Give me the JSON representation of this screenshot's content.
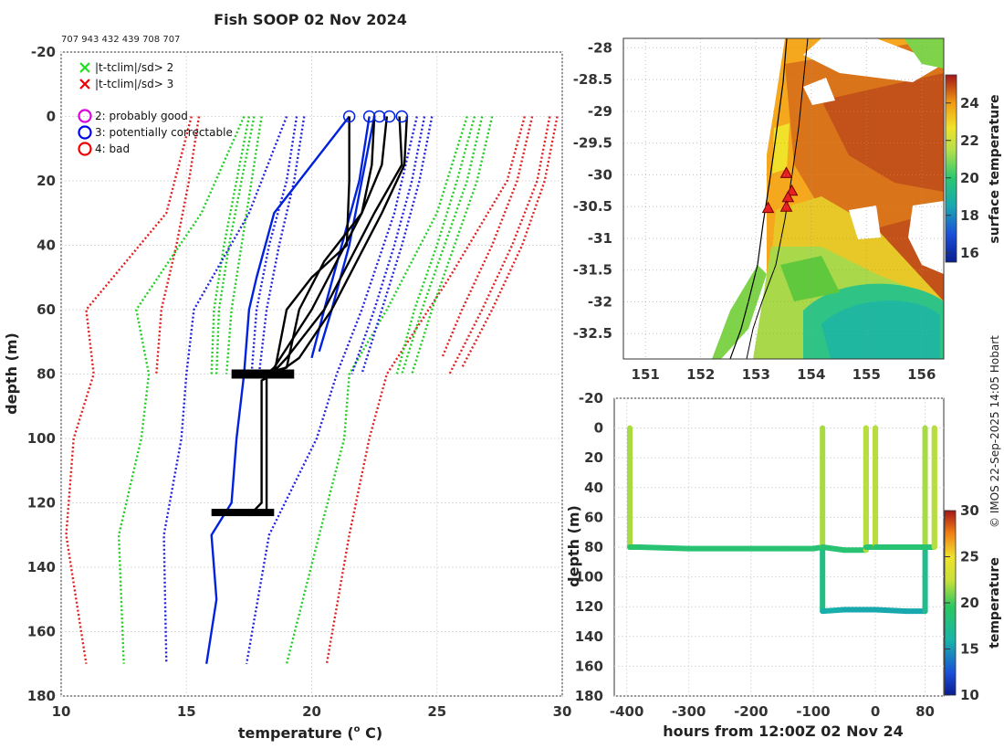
{
  "figure": {
    "title": "Fish SOOP 02 Nov 2024",
    "ids_line": "707 943 432 439 708 707",
    "credit": "© IMOS 22-Sep-2025 14:05 Hobart"
  },
  "chart_data": [
    {
      "id": "profiles",
      "type": "line",
      "title": "Fish SOOP 02 Nov 2024",
      "xlabel": "temperature (",
      "xlabel_sup": "o",
      "xlabel_tail": " C)",
      "ylabel": "depth (m)",
      "xlim": [
        10,
        30
      ],
      "ylim": [
        -20,
        180
      ],
      "y_inverted": true,
      "xticks": [
        "10",
        "15",
        "20",
        "25",
        "30"
      ],
      "yticks": [
        "-20",
        "0",
        "20",
        "40",
        "60",
        "80",
        "100",
        "120",
        "140",
        "160",
        "180"
      ],
      "xtick_values": [
        10,
        15,
        20,
        25,
        30
      ],
      "ytick_values": [
        -20,
        0,
        20,
        40,
        60,
        80,
        100,
        120,
        140,
        160,
        180
      ],
      "grid": true,
      "legend": {
        "position": "top-left",
        "entries": [
          {
            "marker": "x",
            "color": "#22dd22",
            "label": "|t-tclim|/sd> 2"
          },
          {
            "marker": "x",
            "color": "#ee0000",
            "label": "|t-tclim|/sd> 3"
          },
          {
            "marker": "o",
            "color": "#dd00dd",
            "label": "2: probably good"
          },
          {
            "marker": "o",
            "color": "#0000ee",
            "label": "3: potentially correctable"
          },
          {
            "marker": "o",
            "color": "#ee0000",
            "label": "4: bad"
          }
        ]
      },
      "climatology_lines": [
        {
          "color": "#e02020",
          "depth": [
            0,
            30,
            60,
            80,
            100,
            130,
            170
          ],
          "temp": [
            15.2,
            14.2,
            11.0,
            11.3,
            10.5,
            10.2,
            11.0
          ]
        },
        {
          "color": "#e02020",
          "depth": [
            0,
            20,
            40,
            60,
            80
          ],
          "temp": [
            15.5,
            15.1,
            14.6,
            14.0,
            13.8
          ]
        },
        {
          "color": "#e02020",
          "depth": [
            0,
            20,
            50,
            80,
            100,
            130,
            170
          ],
          "temp": [
            28.5,
            27.8,
            25.5,
            23.0,
            22.3,
            21.5,
            20.6
          ]
        },
        {
          "color": "#e02020",
          "depth": [
            0,
            20,
            40,
            60,
            80
          ],
          "temp": [
            29.5,
            29.0,
            28.0,
            26.8,
            25.5
          ]
        },
        {
          "color": "#e02020",
          "depth": [
            0,
            20,
            40,
            60,
            78
          ],
          "temp": [
            29.8,
            29.3,
            28.4,
            27.2,
            26.0
          ]
        },
        {
          "color": "#e02020",
          "depth": [
            0,
            20,
            40,
            60,
            75
          ],
          "temp": [
            28.8,
            28.2,
            27.2,
            26.0,
            25.2
          ]
        },
        {
          "color": "#22cc22",
          "depth": [
            0,
            30,
            60,
            80,
            100,
            130,
            170
          ],
          "temp": [
            17.3,
            15.6,
            13.0,
            13.5,
            13.2,
            12.3,
            12.5
          ]
        },
        {
          "color": "#22cc22",
          "depth": [
            0,
            20,
            40,
            60,
            80
          ],
          "temp": [
            17.7,
            17.2,
            16.7,
            16.3,
            16.2
          ]
        },
        {
          "color": "#22cc22",
          "depth": [
            0,
            20,
            40,
            60,
            80
          ],
          "temp": [
            18.0,
            17.6,
            17.2,
            16.8,
            16.6
          ]
        },
        {
          "color": "#22cc22",
          "depth": [
            0,
            20,
            40,
            60,
            80
          ],
          "temp": [
            17.5,
            17.0,
            16.5,
            16.1,
            16.0
          ]
        },
        {
          "color": "#22cc22",
          "depth": [
            0,
            30,
            60,
            80,
            100,
            130,
            170
          ],
          "temp": [
            26.2,
            25.0,
            23.0,
            21.5,
            21.3,
            20.3,
            19.0
          ]
        },
        {
          "color": "#22cc22",
          "depth": [
            0,
            20,
            40,
            60,
            80
          ],
          "temp": [
            26.8,
            26.2,
            25.3,
            24.4,
            23.6
          ]
        },
        {
          "color": "#22cc22",
          "depth": [
            0,
            20,
            40,
            60,
            80
          ],
          "temp": [
            27.2,
            26.6,
            25.7,
            24.8,
            24.0
          ]
        },
        {
          "color": "#22cc22",
          "depth": [
            0,
            20,
            40,
            60,
            80
          ],
          "temp": [
            26.5,
            25.8,
            25.0,
            24.1,
            23.4
          ]
        },
        {
          "color": "#2222dd",
          "depth": [
            0,
            30,
            60,
            80,
            100,
            130,
            170
          ],
          "temp": [
            19.0,
            17.5,
            15.3,
            15.0,
            14.8,
            14.1,
            14.2
          ]
        },
        {
          "color": "#2222dd",
          "depth": [
            0,
            20,
            40,
            60,
            80
          ],
          "temp": [
            19.4,
            19.0,
            18.3,
            17.8,
            17.6
          ]
        },
        {
          "color": "#2222dd",
          "depth": [
            0,
            20,
            40,
            60,
            80
          ],
          "temp": [
            19.7,
            19.3,
            18.7,
            18.2,
            17.9
          ]
        },
        {
          "color": "#2222dd",
          "depth": [
            0,
            30,
            60,
            80,
            100,
            130,
            170
          ],
          "temp": [
            24.2,
            23.3,
            22.0,
            21.0,
            20.2,
            18.3,
            17.4
          ]
        },
        {
          "color": "#2222dd",
          "depth": [
            0,
            20,
            40,
            60,
            80
          ],
          "temp": [
            24.5,
            24.0,
            23.3,
            22.5,
            21.6
          ]
        },
        {
          "color": "#2222dd",
          "depth": [
            0,
            20,
            40,
            60,
            80
          ],
          "temp": [
            24.8,
            24.3,
            23.6,
            22.8,
            22.0
          ]
        }
      ],
      "observed_lines": [
        {
          "color": "#0022dd",
          "depth": [
            0,
            10,
            30,
            50,
            60,
            80,
            100,
            120,
            130,
            150,
            170
          ],
          "temp": [
            21.5,
            20.5,
            18.5,
            17.8,
            17.5,
            17.3,
            17.0,
            16.8,
            16.0,
            16.2,
            15.8
          ]
        },
        {
          "color": "#0022dd",
          "depth": [
            0,
            20,
            40,
            60,
            75
          ],
          "temp": [
            22.3,
            21.9,
            21.2,
            20.5,
            20.0
          ]
        },
        {
          "color": "#0022dd",
          "depth": [
            0,
            20,
            40,
            60,
            73
          ],
          "temp": [
            22.5,
            22.0,
            21.5,
            20.8,
            20.3
          ]
        },
        {
          "color": "#000000",
          "depth": [
            0,
            20,
            40,
            50,
            60,
            80,
            82,
            100,
            120,
            124
          ],
          "temp": [
            21.5,
            21.5,
            21.4,
            20.0,
            19.0,
            18.5,
            18.0,
            18.0,
            18.0,
            17.5
          ]
        },
        {
          "color": "#000000",
          "depth": [
            0,
            15,
            30,
            45,
            60,
            78,
            80
          ],
          "temp": [
            22.5,
            22.4,
            22.0,
            20.5,
            19.5,
            19.0,
            18.0
          ]
        },
        {
          "color": "#000000",
          "depth": [
            0,
            15,
            30,
            45,
            60,
            78,
            80,
            100,
            123
          ],
          "temp": [
            23.0,
            22.8,
            22.0,
            21.0,
            20.0,
            18.5,
            18.2,
            18.2,
            18.2
          ]
        },
        {
          "color": "#000000",
          "depth": [
            0,
            15,
            30,
            45,
            60,
            75,
            80
          ],
          "temp": [
            23.5,
            23.6,
            22.5,
            21.5,
            20.5,
            19.0,
            18.4
          ]
        },
        {
          "color": "#000000",
          "depth": [
            0,
            15,
            30,
            45,
            60,
            75,
            80
          ],
          "temp": [
            23.8,
            23.7,
            22.8,
            21.8,
            20.8,
            19.5,
            18.6
          ]
        }
      ],
      "surface_circles": [
        {
          "temp": 21.5,
          "color": "#0022dd"
        },
        {
          "temp": 22.3,
          "color": "#0022dd"
        },
        {
          "temp": 22.7,
          "color": "#0022dd"
        },
        {
          "temp": 23.1,
          "color": "#0022dd"
        },
        {
          "temp": 23.6,
          "color": "#0022dd"
        }
      ]
    },
    {
      "id": "sst_map",
      "type": "heatmap",
      "xlabel": "",
      "ylabel": "",
      "xlim": [
        150.6,
        156.4
      ],
      "ylim": [
        -32.9,
        -27.85
      ],
      "xticks": [
        "151",
        "152",
        "153",
        "154",
        "155",
        "156"
      ],
      "xtick_values": [
        151,
        152,
        153,
        154,
        155,
        156
      ],
      "yticks": [
        "-28",
        "-28.5",
        "-29",
        "-29.5",
        "-30",
        "-30.5",
        "-31",
        "-31.5",
        "-32",
        "-32.5"
      ],
      "ytick_values": [
        -28,
        -28.5,
        -29,
        -29.5,
        -30,
        -30.5,
        -31,
        -31.5,
        -32,
        -32.5
      ],
      "colorbar": {
        "label": "surface temperature",
        "range": [
          15.5,
          25.5
        ],
        "ticks": [
          "16",
          "18",
          "20",
          "22",
          "24"
        ],
        "tick_values": [
          16,
          18,
          20,
          22,
          24
        ]
      },
      "stations": [
        {
          "lon": 153.55,
          "lat": -29.97
        },
        {
          "lon": 153.65,
          "lat": -30.25
        },
        {
          "lon": 153.58,
          "lat": -30.35
        },
        {
          "lon": 153.22,
          "lat": -30.52
        },
        {
          "lon": 153.55,
          "lat": -30.5
        }
      ]
    },
    {
      "id": "time_depth",
      "type": "scatter",
      "xlabel": "hours from 12:00Z 02 Nov 24",
      "ylabel": "depth (m)",
      "xlim": [
        -420,
        110
      ],
      "ylim": [
        -20,
        180
      ],
      "y_inverted": true,
      "xticks": [
        "-400",
        "-300",
        "-200",
        "-100",
        "0",
        "80"
      ],
      "xtick_values": [
        -400,
        -300,
        -200,
        -100,
        0,
        80
      ],
      "yticks": [
        "-20",
        "0",
        "20",
        "40",
        "60",
        "80",
        "100",
        "120",
        "140",
        "160",
        "180"
      ],
      "ytick_values": [
        -20,
        0,
        20,
        40,
        60,
        80,
        100,
        120,
        140,
        160,
        180
      ],
      "colorbar": {
        "label": "temperature",
        "range": [
          10,
          30
        ],
        "ticks": [
          "10",
          "15",
          "20",
          "25",
          "30"
        ],
        "tick_values": [
          10,
          15,
          20,
          25,
          30
        ]
      },
      "tracks": [
        {
          "hours": [
            -395,
            -395,
            -380,
            -300,
            -200,
            -150,
            -100,
            -85
          ],
          "depth": [
            0,
            80,
            80,
            81,
            81,
            81,
            81,
            80
          ],
          "temp": [
            24,
            20,
            19.5,
            19.5,
            19.5,
            19.5,
            19.5,
            19.5
          ]
        },
        {
          "hours": [
            -85,
            -85,
            -85,
            -50,
            0,
            50,
            80,
            80,
            80
          ],
          "depth": [
            0,
            80,
            123,
            122,
            122,
            123,
            123,
            80,
            0
          ],
          "temp": [
            24,
            20,
            18,
            17.5,
            17.5,
            17.5,
            17.5,
            20,
            24
          ]
        },
        {
          "hours": [
            -85,
            -50,
            -15,
            -15,
            -15,
            -5,
            0,
            0,
            0,
            30,
            70,
            80,
            95,
            95,
            95
          ],
          "depth": [
            80,
            82,
            82,
            0,
            80,
            80,
            80,
            0,
            80,
            80,
            80,
            80,
            80,
            0,
            80
          ],
          "temp": [
            19.5,
            19.5,
            19.5,
            25,
            19.5,
            19.5,
            19.5,
            25,
            19.5,
            19.5,
            19.5,
            19.5,
            19.5,
            25,
            19.5
          ]
        }
      ]
    }
  ]
}
